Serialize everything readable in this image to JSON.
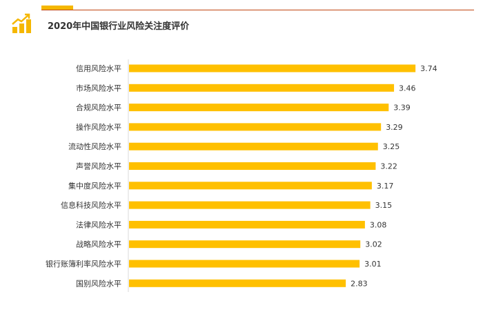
{
  "header": {
    "title": "2020年中国银行业风险关注度评价",
    "icon": "bar-growth-icon",
    "accent_color": "#F5B700",
    "rule_color": "#C0440F"
  },
  "chart_data": {
    "type": "bar",
    "orientation": "horizontal",
    "title": "2020年中国银行业风险关注度评价",
    "xlabel": "",
    "ylabel": "",
    "categories": [
      "信用风险水平",
      "市场风险水平",
      "合规风险水平",
      "操作风险水平",
      "流动性风险水平",
      "声誉风险水平",
      "集中度风险水平",
      "信息科技风险水平",
      "法律风险水平",
      "战略风险水平",
      "银行账簿利率风险水平",
      "国别风险水平"
    ],
    "values": [
      3.74,
      3.46,
      3.39,
      3.29,
      3.25,
      3.22,
      3.17,
      3.15,
      3.08,
      3.02,
      3.01,
      2.83
    ],
    "value_labels": [
      "3.74",
      "3.46",
      "3.39",
      "3.29",
      "3.25",
      "3.22",
      "3.17",
      "3.15",
      "3.08",
      "3.02",
      "3.01",
      "2.83"
    ],
    "xlim": [
      0,
      4.2
    ],
    "grid": false,
    "legend": "none",
    "bar_color": "#FFC000"
  }
}
